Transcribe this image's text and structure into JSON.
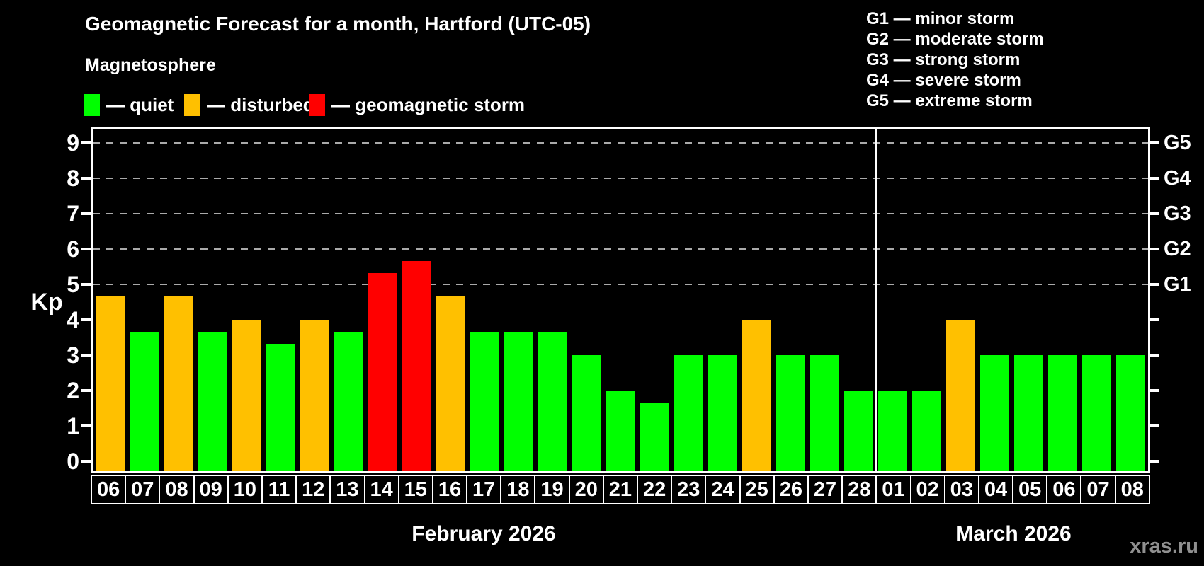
{
  "header": {
    "title": "Geomagnetic Forecast for a month, Hartford (UTC-05)",
    "subtitle": "Magnetosphere"
  },
  "legend": {
    "items": [
      {
        "key": "quiet",
        "label": "— quiet",
        "color": "#00ff00"
      },
      {
        "key": "disturbed",
        "label": "— disturbed",
        "color": "#ffc000"
      },
      {
        "key": "storm",
        "label": "— geomagnetic storm",
        "color": "#ff0000"
      }
    ]
  },
  "storm_scale": {
    "lines": [
      "G1 — minor storm",
      "G2 — moderate storm",
      "G3 — strong storm",
      "G4 — severe storm",
      "G5 — extreme storm"
    ]
  },
  "watermark": "xras.ru",
  "chart_data": {
    "type": "bar",
    "ylabel": "Kp",
    "ylim": [
      0,
      9
    ],
    "yticks": [
      0,
      1,
      2,
      3,
      4,
      5,
      6,
      7,
      8,
      9
    ],
    "grid_levels": [
      5,
      6,
      7,
      8,
      9
    ],
    "grid_on": true,
    "right_axis": [
      {
        "kp": 5,
        "label": "G1"
      },
      {
        "kp": 6,
        "label": "G2"
      },
      {
        "kp": 7,
        "label": "G3"
      },
      {
        "kp": 8,
        "label": "G4"
      },
      {
        "kp": 9,
        "label": "G5"
      }
    ],
    "status_colors": {
      "quiet": "#00ff00",
      "disturbed": "#ffc000",
      "storm": "#ff0000"
    },
    "months": [
      {
        "label": "February 2026",
        "days": 23
      },
      {
        "label": "March 2026",
        "days": 8
      }
    ],
    "bars": [
      {
        "month": "february",
        "day": "06",
        "kp": 4.67,
        "status": "disturbed"
      },
      {
        "month": "february",
        "day": "07",
        "kp": 3.67,
        "status": "quiet"
      },
      {
        "month": "february",
        "day": "08",
        "kp": 4.67,
        "status": "disturbed"
      },
      {
        "month": "february",
        "day": "09",
        "kp": 3.67,
        "status": "quiet"
      },
      {
        "month": "february",
        "day": "10",
        "kp": 4.0,
        "status": "disturbed"
      },
      {
        "month": "february",
        "day": "11",
        "kp": 3.33,
        "status": "quiet"
      },
      {
        "month": "february",
        "day": "12",
        "kp": 4.0,
        "status": "disturbed"
      },
      {
        "month": "february",
        "day": "13",
        "kp": 3.67,
        "status": "quiet"
      },
      {
        "month": "february",
        "day": "14",
        "kp": 5.33,
        "status": "storm"
      },
      {
        "month": "february",
        "day": "15",
        "kp": 5.67,
        "status": "storm"
      },
      {
        "month": "february",
        "day": "16",
        "kp": 4.67,
        "status": "disturbed"
      },
      {
        "month": "february",
        "day": "17",
        "kp": 3.67,
        "status": "quiet"
      },
      {
        "month": "february",
        "day": "18",
        "kp": 3.67,
        "status": "quiet"
      },
      {
        "month": "february",
        "day": "19",
        "kp": 3.67,
        "status": "quiet"
      },
      {
        "month": "february",
        "day": "20",
        "kp": 3.0,
        "status": "quiet"
      },
      {
        "month": "february",
        "day": "21",
        "kp": 2.0,
        "status": "quiet"
      },
      {
        "month": "february",
        "day": "22",
        "kp": 1.67,
        "status": "quiet"
      },
      {
        "month": "february",
        "day": "23",
        "kp": 3.0,
        "status": "quiet"
      },
      {
        "month": "february",
        "day": "24",
        "kp": 3.0,
        "status": "quiet"
      },
      {
        "month": "february",
        "day": "25",
        "kp": 4.0,
        "status": "disturbed"
      },
      {
        "month": "february",
        "day": "26",
        "kp": 3.0,
        "status": "quiet"
      },
      {
        "month": "february",
        "day": "27",
        "kp": 3.0,
        "status": "quiet"
      },
      {
        "month": "february",
        "day": "28",
        "kp": 2.0,
        "status": "quiet"
      },
      {
        "month": "march",
        "day": "01",
        "kp": 2.0,
        "status": "quiet"
      },
      {
        "month": "march",
        "day": "02",
        "kp": 2.0,
        "status": "quiet"
      },
      {
        "month": "march",
        "day": "03",
        "kp": 4.0,
        "status": "disturbed"
      },
      {
        "month": "march",
        "day": "04",
        "kp": 3.0,
        "status": "quiet"
      },
      {
        "month": "march",
        "day": "05",
        "kp": 3.0,
        "status": "quiet"
      },
      {
        "month": "march",
        "day": "06",
        "kp": 3.0,
        "status": "quiet"
      },
      {
        "month": "march",
        "day": "07",
        "kp": 3.0,
        "status": "quiet"
      },
      {
        "month": "march",
        "day": "08",
        "kp": 3.0,
        "status": "quiet"
      }
    ]
  }
}
